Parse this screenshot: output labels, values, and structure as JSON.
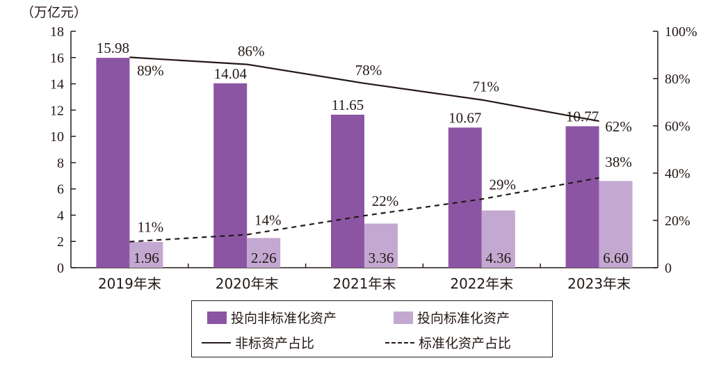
{
  "chart_data": {
    "type": "bar",
    "unit_label": "（万亿元）",
    "categories": [
      "2019年末",
      "2020年末",
      "2021年末",
      "2022年末",
      "2023年末"
    ],
    "ylim": [
      0,
      18
    ],
    "yticks": [
      "0",
      "2",
      "4",
      "6",
      "8",
      "10",
      "12",
      "14",
      "16",
      "18"
    ],
    "y2lim": [
      0,
      100
    ],
    "y2ticks": [
      "0",
      "20%",
      "40%",
      "60%",
      "80%",
      "100%"
    ],
    "series": [
      {
        "name": "投向非标准化资产",
        "values": [
          15.98,
          14.04,
          11.65,
          10.67,
          10.77
        ],
        "labels": [
          "15.98",
          "14.04",
          "11.65",
          "10.67",
          "10.77"
        ],
        "color": "#8c55a3",
        "axis": "left"
      },
      {
        "name": "投向标准化资产",
        "values": [
          1.96,
          2.26,
          3.36,
          4.36,
          6.6
        ],
        "labels": [
          "1.96",
          "2.26",
          "3.36",
          "4.36",
          "6.60"
        ],
        "color": "#c3a8d1",
        "axis": "left"
      }
    ],
    "lines": [
      {
        "name": "非标资产占比",
        "values": [
          89,
          86,
          78,
          71,
          62
        ],
        "labels": [
          "89%",
          "86%",
          "78%",
          "71%",
          "62%"
        ],
        "style": "solid",
        "axis": "right"
      },
      {
        "name": "标准化资产占比",
        "values": [
          11,
          14,
          22,
          29,
          38
        ],
        "labels": [
          "11%",
          "14%",
          "22%",
          "29%",
          "38%"
        ],
        "style": "dashed",
        "axis": "right"
      }
    ],
    "grid": false,
    "legend_position": "bottom"
  }
}
